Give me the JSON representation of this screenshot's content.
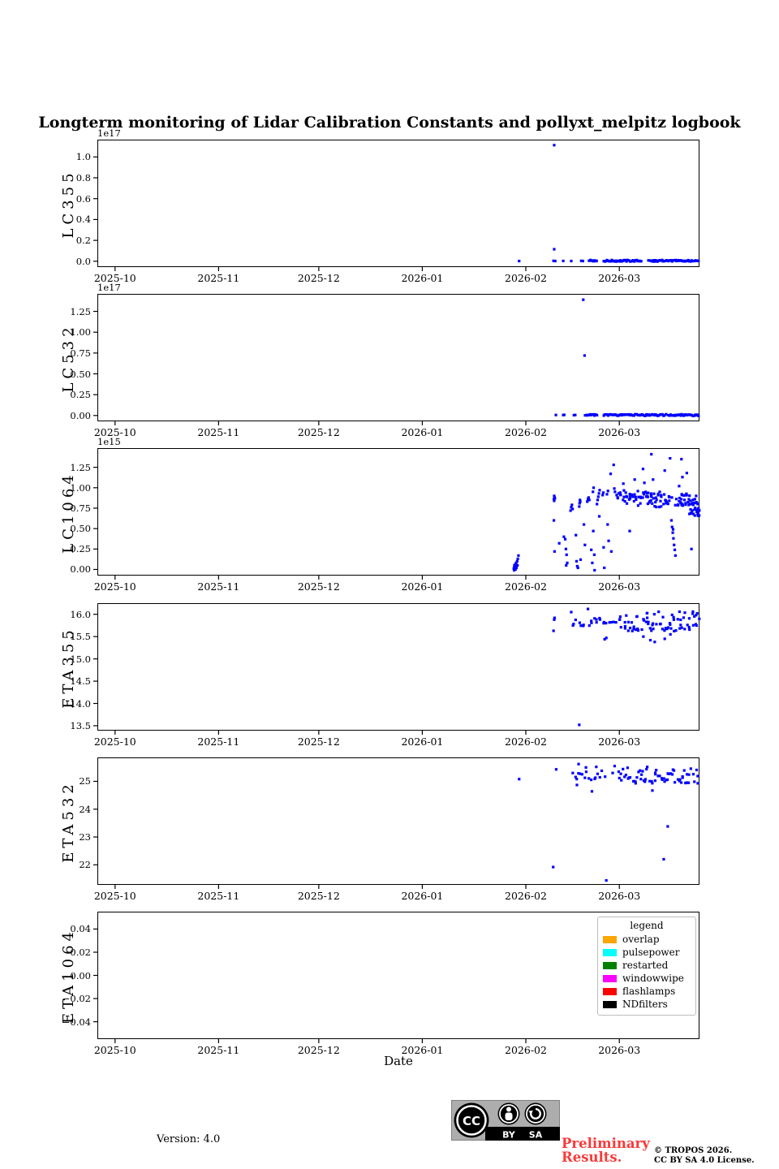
{
  "title": "Longterm monitoring of Lidar Calibration Constants and pollyxt_melpitz logbook",
  "marker_color": "#0000ff",
  "accent_red": "#f93a3a",
  "chart_data": {
    "type": "scatter",
    "xaxis": {
      "label": "Date",
      "dmin": -5.3,
      "dmax": 175.0,
      "ticks": [
        {
          "d": 0,
          "label": "2025-10"
        },
        {
          "d": 31,
          "label": "2025-11"
        },
        {
          "d": 61,
          "label": "2025-12"
        },
        {
          "d": 92,
          "label": "2026-01"
        },
        {
          "d": 123,
          "label": "2026-02"
        },
        {
          "d": 151,
          "label": "2026-03"
        }
      ]
    },
    "panels": [
      {
        "ylabel": "LC355",
        "offset": "1e17",
        "ylim": [
          -0.056,
          1.166
        ],
        "yticks": [
          {
            "v": 0.0,
            "label": "0.0"
          },
          {
            "v": 0.2,
            "label": "0.2"
          },
          {
            "v": 0.4,
            "label": "0.4"
          },
          {
            "v": 0.6,
            "label": "0.6"
          },
          {
            "v": 0.8,
            "label": "0.8"
          },
          {
            "v": 1.0,
            "label": "1.0"
          }
        ],
        "points": [
          [
            121.0,
            0.002
          ],
          [
            131.5,
            1.113
          ],
          [
            131.5,
            0.115
          ],
          [
            131.3,
            0.004
          ],
          [
            131.8,
            0.002
          ],
          [
            134.2,
            0.003
          ],
          [
            136.6,
            0.002
          ],
          [
            139.6,
            0.004
          ],
          [
            140.1,
            0.002
          ]
        ],
        "bands": [
          {
            "d0": 142.0,
            "d1": 144.2,
            "n": 8,
            "v0": -0.003,
            "v1": 0.012,
            "jd": 0.2
          },
          {
            "d0": 146.3,
            "d1": 157.6,
            "n": 34,
            "v0": -0.004,
            "v1": 0.012,
            "jd": 0.2
          },
          {
            "d0": 159.8,
            "d1": 174.7,
            "n": 46,
            "v0": -0.004,
            "v1": 0.012,
            "jd": 0.2
          }
        ]
      },
      {
        "ylabel": "LC532",
        "offset": "1e17",
        "ylim": [
          -0.07,
          1.46
        ],
        "yticks": [
          {
            "v": 0.0,
            "label": "0.00"
          },
          {
            "v": 0.25,
            "label": "0.25"
          },
          {
            "v": 0.5,
            "label": "0.50"
          },
          {
            "v": 0.75,
            "label": "0.75"
          },
          {
            "v": 1.0,
            "label": "1.00"
          },
          {
            "v": 1.25,
            "label": "1.25"
          }
        ],
        "points": [
          [
            140.2,
            1.39
          ],
          [
            140.6,
            0.72
          ],
          [
            132.0,
            0.006
          ],
          [
            134.2,
            0.005
          ],
          [
            134.5,
            0.008
          ],
          [
            137.4,
            0.004
          ],
          [
            137.8,
            0.006
          ],
          [
            144.3,
            0.004
          ]
        ],
        "bands": [
          {
            "d0": 140.8,
            "d1": 143.9,
            "n": 10,
            "v0": -0.004,
            "v1": 0.014,
            "jd": 0.2
          },
          {
            "d0": 146.3,
            "d1": 148.7,
            "n": 8,
            "v0": -0.004,
            "v1": 0.014,
            "jd": 0.2
          },
          {
            "d0": 149.0,
            "d1": 164.9,
            "n": 48,
            "v0": -0.005,
            "v1": 0.015,
            "jd": 0.2
          },
          {
            "d0": 165.7,
            "d1": 174.7,
            "n": 28,
            "v0": -0.005,
            "v1": 0.015,
            "jd": 0.2
          }
        ]
      },
      {
        "ylabel": "LC1064",
        "offset": "1e15",
        "ylim": [
          -0.075,
          1.485
        ],
        "yticks": [
          {
            "v": 0.0,
            "label": "0.00"
          },
          {
            "v": 0.25,
            "label": "0.25"
          },
          {
            "v": 0.5,
            "label": "0.50"
          },
          {
            "v": 0.75,
            "label": "0.75"
          },
          {
            "v": 1.0,
            "label": "1.00"
          },
          {
            "v": 1.25,
            "label": "1.25"
          }
        ],
        "points": [
          [
            119.4,
            0.01
          ],
          [
            119.5,
            -0.01
          ],
          [
            119.55,
            0.03
          ],
          [
            119.6,
            0.05
          ],
          [
            119.7,
            0.02
          ],
          [
            119.8,
            0.06
          ],
          [
            119.9,
            0.0
          ],
          [
            120.0,
            0.04
          ],
          [
            120.1,
            0.08
          ],
          [
            120.2,
            0.02
          ],
          [
            120.4,
            0.1
          ],
          [
            120.5,
            0.05
          ],
          [
            120.6,
            0.13
          ],
          [
            120.8,
            0.17
          ],
          [
            131.4,
            0.86
          ],
          [
            131.5,
            0.9
          ],
          [
            131.6,
            0.88
          ],
          [
            131.5,
            0.84
          ],
          [
            131.7,
            0.87
          ],
          [
            131.4,
            0.6
          ],
          [
            131.6,
            0.22
          ],
          [
            133.0,
            0.32
          ],
          [
            134.4,
            0.4
          ],
          [
            134.8,
            0.37
          ],
          [
            135.0,
            0.25
          ],
          [
            135.2,
            0.18
          ],
          [
            135.1,
            0.05
          ],
          [
            135.4,
            0.08
          ],
          [
            136.4,
            0.72
          ],
          [
            136.6,
            0.76
          ],
          [
            136.8,
            0.79
          ],
          [
            137.0,
            0.74
          ],
          [
            138.0,
            0.42
          ],
          [
            138.2,
            0.1
          ],
          [
            138.4,
            0.04
          ],
          [
            138.6,
            0.02
          ],
          [
            139.0,
            0.77
          ],
          [
            139.1,
            0.81
          ],
          [
            139.2,
            0.85
          ],
          [
            139.3,
            0.83
          ],
          [
            139.4,
            0.12
          ],
          [
            140.4,
            0.55
          ],
          [
            140.7,
            0.3
          ],
          [
            141.4,
            0.83
          ],
          [
            141.6,
            0.86
          ],
          [
            141.8,
            0.88
          ],
          [
            142.0,
            0.85
          ],
          [
            142.6,
            0.24
          ],
          [
            142.9,
            0.08
          ],
          [
            143.1,
            0.95
          ],
          [
            143.3,
            1.0
          ],
          [
            143.2,
            0.47
          ],
          [
            143.5,
            0.18
          ],
          [
            143.6,
            -0.01
          ],
          [
            144.3,
            0.8
          ],
          [
            144.5,
            0.85
          ],
          [
            144.7,
            0.89
          ],
          [
            144.9,
            0.93
          ],
          [
            145.1,
            0.97
          ],
          [
            145.0,
            0.65
          ],
          [
            146.0,
            0.91
          ],
          [
            146.2,
            0.94
          ],
          [
            146.3,
            0.27
          ],
          [
            146.5,
            0.02
          ],
          [
            147.3,
            0.92
          ],
          [
            147.6,
            0.96
          ],
          [
            147.5,
            0.55
          ],
          [
            147.8,
            0.35
          ],
          [
            148.4,
            1.17
          ],
          [
            148.6,
            0.22
          ],
          [
            149.3,
            1.28
          ],
          [
            149.5,
            0.99
          ],
          [
            149.7,
            0.95
          ],
          [
            150.2,
            0.91
          ],
          [
            150.5,
            0.88
          ],
          [
            150.8,
            0.93
          ],
          [
            152.2,
            1.05
          ],
          [
            154.1,
            0.47
          ],
          [
            155.6,
            1.1
          ],
          [
            158.1,
            1.23
          ],
          [
            158.5,
            1.06
          ],
          [
            160.6,
            1.41
          ],
          [
            161.1,
            1.1
          ],
          [
            164.6,
            1.21
          ],
          [
            166.2,
            1.36
          ],
          [
            166.6,
            0.6
          ],
          [
            166.8,
            0.52
          ],
          [
            167.0,
            0.45
          ],
          [
            167.1,
            0.49
          ],
          [
            167.2,
            0.38
          ],
          [
            167.4,
            0.3
          ],
          [
            167.6,
            0.24
          ],
          [
            167.8,
            0.17
          ],
          [
            168.9,
            1.02
          ],
          [
            169.6,
            1.35
          ],
          [
            169.9,
            1.13
          ],
          [
            171.2,
            1.18
          ],
          [
            172.3,
            0.84
          ],
          [
            172.6,
            0.25
          ],
          [
            172.8,
            0.8
          ],
          [
            173.2,
            0.68
          ],
          [
            173.6,
            0.66
          ],
          [
            174.0,
            0.9
          ],
          [
            174.5,
            0.8
          ],
          [
            174.6,
            0.7
          ],
          [
            174.7,
            0.75
          ],
          [
            174.8,
            0.72
          ]
        ],
        "bands": [
          {
            "d0": 151.0,
            "d1": 157.8,
            "n": 30,
            "v0": 0.78,
            "v1": 0.97,
            "jd": 1.0
          },
          {
            "d0": 158.0,
            "d1": 163.9,
            "n": 34,
            "v0": 0.76,
            "v1": 0.95,
            "jd": 1.0
          },
          {
            "d0": 164.0,
            "d1": 166.4,
            "n": 12,
            "v0": 0.8,
            "v1": 0.92,
            "jd": 0.8
          },
          {
            "d0": 168.2,
            "d1": 171.9,
            "n": 26,
            "v0": 0.78,
            "v1": 0.93,
            "jd": 0.9
          },
          {
            "d0": 172.0,
            "d1": 174.8,
            "n": 22,
            "v0": 0.64,
            "v1": 0.86,
            "jd": 0.7
          }
        ]
      },
      {
        "ylabel": "ETA355",
        "offset": "",
        "ylim": [
          13.39,
          16.25
        ],
        "yticks": [
          {
            "v": 13.5,
            "label": "13.5"
          },
          {
            "v": 14.0,
            "label": "14.0"
          },
          {
            "v": 14.5,
            "label": "14.5"
          },
          {
            "v": 15.0,
            "label": "15.0"
          },
          {
            "v": 15.5,
            "label": "15.5"
          },
          {
            "v": 16.0,
            "label": "16.0"
          }
        ],
        "points": [
          [
            131.3,
            15.63
          ],
          [
            131.5,
            15.88
          ],
          [
            131.6,
            15.92
          ],
          [
            136.6,
            16.05
          ],
          [
            139.0,
            13.52
          ],
          [
            141.6,
            16.12
          ],
          [
            146.6,
            15.44
          ],
          [
            147.1,
            15.47
          ],
          [
            158.2,
            15.5
          ],
          [
            160.3,
            15.42
          ],
          [
            161.6,
            15.38
          ],
          [
            164.6,
            15.45
          ],
          [
            166.3,
            15.55
          ],
          [
            174.0,
            15.98
          ],
          [
            174.3,
            16.02
          ]
        ],
        "bands": [
          {
            "d0": 137.0,
            "d1": 140.5,
            "n": 7,
            "v0": 15.72,
            "v1": 15.92,
            "jd": 0.8
          },
          {
            "d0": 141.8,
            "d1": 148.4,
            "n": 14,
            "v0": 15.74,
            "v1": 15.95,
            "jd": 0.9
          },
          {
            "d0": 149.5,
            "d1": 151.0,
            "n": 3,
            "v0": 15.8,
            "v1": 15.9,
            "jd": 0.5
          },
          {
            "d0": 151.2,
            "d1": 174.5,
            "n": 72,
            "v0": 15.62,
            "v1": 16.06,
            "jd": 1.3
          }
        ]
      },
      {
        "ylabel": "ETA532",
        "offset": "",
        "ylim": [
          21.28,
          25.86
        ],
        "yticks": [
          {
            "v": 22,
            "label": "22"
          },
          {
            "v": 23,
            "label": "23"
          },
          {
            "v": 24,
            "label": "24"
          },
          {
            "v": 25,
            "label": "25"
          }
        ],
        "points": [
          [
            121.0,
            25.08
          ],
          [
            131.2,
            21.92
          ],
          [
            132.1,
            25.43
          ],
          [
            138.3,
            24.87
          ],
          [
            138.8,
            25.62
          ],
          [
            141.0,
            25.5
          ],
          [
            142.8,
            24.64
          ],
          [
            144.1,
            25.52
          ],
          [
            147.1,
            21.44
          ],
          [
            149.0,
            25.3
          ],
          [
            149.6,
            25.55
          ],
          [
            160.9,
            24.67
          ],
          [
            164.3,
            22.2
          ],
          [
            165.5,
            23.38
          ],
          [
            174.5,
            24.93
          ]
        ],
        "bands": [
          {
            "d0": 137.0,
            "d1": 146.4,
            "n": 16,
            "v0": 25.02,
            "v1": 25.4,
            "jd": 0.8
          },
          {
            "d0": 151.0,
            "d1": 174.2,
            "n": 66,
            "v0": 24.93,
            "v1": 25.52,
            "jd": 1.2
          }
        ]
      },
      {
        "ylabel": "ETA1064",
        "offset": "",
        "ylim": [
          -0.055,
          0.055
        ],
        "yticks": [
          {
            "v": -0.04,
            "label": "−0.04"
          },
          {
            "v": -0.02,
            "label": "−0.02"
          },
          {
            "v": 0.0,
            "label": "0.00"
          },
          {
            "v": 0.02,
            "label": "0.02"
          },
          {
            "v": 0.04,
            "label": "0.04"
          }
        ],
        "points": [],
        "bands": []
      }
    ]
  },
  "legend": {
    "title": "legend",
    "items": [
      {
        "label": "overlap",
        "color": "#ffa500"
      },
      {
        "label": "pulsepower",
        "color": "#00ffff"
      },
      {
        "label": "restarted",
        "color": "#008000"
      },
      {
        "label": "windowwipe",
        "color": "#ff00ff"
      },
      {
        "label": "flashlamps",
        "color": "#ff0000"
      },
      {
        "label": "NDfilters",
        "color": "#000000"
      }
    ]
  },
  "xlabel": "Date",
  "footer": {
    "version": "Version: 4.0",
    "preliminary_line1": "Preliminary",
    "preliminary_line2": "Results.",
    "copyright_line1": "© TROPOS 2026.",
    "copyright_line2": "CC BY SA 4.0 License.",
    "cc_badge": {
      "cc": "CC",
      "by": "BY",
      "sa": "SA"
    }
  }
}
